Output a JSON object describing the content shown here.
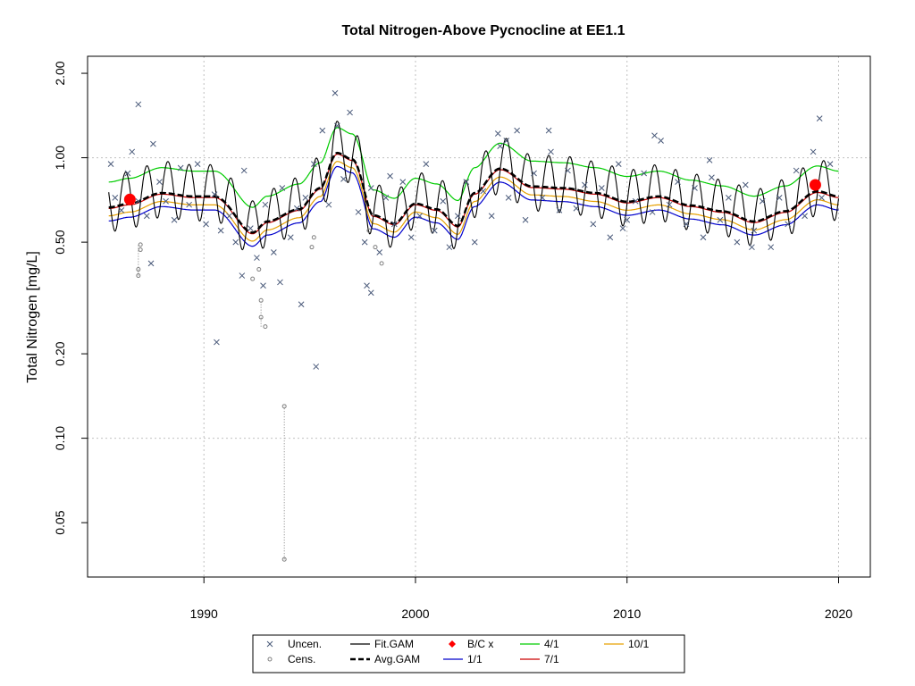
{
  "chart_data": {
    "type": "scatter",
    "title": "Total Nitrogen-Above Pycnocline at EE1.1",
    "xlabel": "",
    "ylabel": "Total Nitrogen [mg/L]",
    "y_scale": "log",
    "xlim": [
      1984.5,
      2021.5
    ],
    "ylim": [
      0.032,
      2.3
    ],
    "x_ticks": [
      1990,
      2000,
      2010,
      2020
    ],
    "x_tick_labels": [
      "1990",
      "2000",
      "2010",
      "2020"
    ],
    "y_ticks": [
      0.05,
      0.1,
      0.2,
      0.5,
      1.0,
      2.0
    ],
    "y_tick_labels": [
      "0.05",
      "0.10",
      "0.20",
      "0.50",
      "1.00",
      "2.00"
    ],
    "grid": true,
    "legend_position": "bottom",
    "legend": [
      {
        "key": "uncen",
        "label": "Uncen.",
        "symbol": "x",
        "color": "#4a5a7a"
      },
      {
        "key": "cens",
        "label": "Cens.",
        "symbol": "o",
        "color": "#808080"
      },
      {
        "key": "fit_gam",
        "label": "Fit.GAM",
        "symbol": "line",
        "color": "#000000"
      },
      {
        "key": "avg_gam",
        "label": "Avg.GAM",
        "symbol": "dashed",
        "color": "#000000"
      },
      {
        "key": "bc",
        "label": "B/C x",
        "symbol": "diamond",
        "color": "#ff0000"
      },
      {
        "key": "d11",
        "label": "1/1",
        "symbol": "line",
        "color": "#0000cc"
      },
      {
        "key": "d41",
        "label": "4/1",
        "symbol": "line",
        "color": "#00cc00"
      },
      {
        "key": "d71",
        "label": "7/1",
        "symbol": "line",
        "color": "#cc0000"
      },
      {
        "key": "d101",
        "label": "10/1",
        "symbol": "line",
        "color": "#e6a000"
      }
    ],
    "colors": {
      "uncen": "#4a5a7a",
      "cens": "#808080",
      "fit": "#000000",
      "avg": "#000000",
      "bc": "#ff0000",
      "d11": "#0000cc",
      "d41": "#00cc00",
      "d71": "#cc0000",
      "d101": "#e6a000",
      "grid": "#c0c0c0"
    },
    "baseline_nodes": {
      "x": [
        1985.5,
        1986.5,
        1988,
        1989.5,
        1990.5,
        1992.3,
        1993,
        1994.5,
        1995.5,
        1996.3,
        1997,
        1998,
        1999,
        2000,
        2001,
        2002,
        2002.8,
        2004,
        2005.5,
        2007,
        2008.5,
        2010,
        2011.5,
        2013,
        2014.5,
        2016,
        2017.5,
        2019,
        2020
      ],
      "y": [
        0.64,
        0.66,
        0.72,
        0.7,
        0.7,
        0.52,
        0.57,
        0.63,
        0.75,
        1.0,
        0.95,
        0.6,
        0.56,
        0.66,
        0.63,
        0.55,
        0.72,
        0.88,
        0.76,
        0.75,
        0.72,
        0.67,
        0.7,
        0.65,
        0.62,
        0.57,
        0.62,
        0.73,
        0.7
      ]
    },
    "day_factors": {
      "d11": 0.93,
      "d41": 1.28,
      "d71": 1.03,
      "d101": 0.97,
      "avg": 1.04
    },
    "fit_seasonal": {
      "start_offset": 0.3,
      "trough_factor": 0.85,
      "peak_factor": 1.35
    },
    "bc_points": [
      {
        "x": 1986.5,
        "y": 0.71
      },
      {
        "x": 2018.9,
        "y": 0.8
      }
    ],
    "uncensored": {
      "x": [
        1985.6,
        1985.8,
        1986.1,
        1986.4,
        1986.6,
        1986.9,
        1987.3,
        1987.6,
        1987.9,
        1988.2,
        1988.6,
        1988.9,
        1989.3,
        1989.7,
        1990.1,
        1990.5,
        1990.8,
        1991.2,
        1991.5,
        1991.9,
        1992.2,
        1992.5,
        1992.9,
        1993.3,
        1993.7,
        1994.1,
        1994.4,
        1994.8,
        1995.2,
        1995.6,
        1995.9,
        1996.3,
        1996.6,
        1996.9,
        1997.3,
        1997.6,
        1997.9,
        1998.3,
        1998.6,
        1999.0,
        1999.4,
        1999.8,
        2000.2,
        2000.5,
        2000.9,
        2001.3,
        2001.6,
        2002.0,
        2002.4,
        2002.8,
        2003.2,
        2003.6,
        2004.0,
        2004.4,
        2004.8,
        2005.2,
        2005.6,
        2006.0,
        2006.4,
        2006.8,
        2007.2,
        2007.6,
        2008.0,
        2008.4,
        2008.8,
        2009.2,
        2009.6,
        2010.0,
        2010.4,
        2010.8,
        2011.2,
        2011.6,
        2012.0,
        2012.4,
        2012.8,
        2013.2,
        2013.6,
        2014.0,
        2014.4,
        2014.8,
        2015.2,
        2015.6,
        2016.0,
        2016.4,
        2016.8,
        2017.2,
        2017.6,
        2018.0,
        2018.4,
        2018.8,
        2019.2,
        2019.6,
        1987.5,
        1991.8,
        1993.6,
        1996.2,
        1997.7,
        2004.3,
        2011.3,
        2019.1,
        1986.9,
        1992.8,
        1995.3,
        1998.8,
        2003.9,
        2009.8,
        2015.9,
        1990.6,
        1994.6,
        1997.9,
        2006.3,
        2013.9
      ],
      "y": [
        0.95,
        0.72,
        0.65,
        0.88,
        1.05,
        0.7,
        0.62,
        1.12,
        0.82,
        0.7,
        0.6,
        0.92,
        0.68,
        0.95,
        0.58,
        0.74,
        0.55,
        0.62,
        0.5,
        0.9,
        0.56,
        0.44,
        0.68,
        0.46,
        0.78,
        0.52,
        0.66,
        0.72,
        0.95,
        1.25,
        0.68,
        1.3,
        0.84,
        1.45,
        0.64,
        0.5,
        0.78,
        0.46,
        0.72,
        0.58,
        0.82,
        0.52,
        0.62,
        0.95,
        0.55,
        0.7,
        0.48,
        0.62,
        0.82,
        0.5,
        0.76,
        0.62,
        1.1,
        0.72,
        1.25,
        0.6,
        0.88,
        0.72,
        1.05,
        0.65,
        0.9,
        0.66,
        0.8,
        0.58,
        0.78,
        0.52,
        0.95,
        0.6,
        0.7,
        0.88,
        0.64,
        1.15,
        0.68,
        0.82,
        0.58,
        0.78,
        0.52,
        0.85,
        0.6,
        0.72,
        0.5,
        0.8,
        0.55,
        0.7,
        0.48,
        0.72,
        0.58,
        0.9,
        0.62,
        1.05,
        0.72,
        0.95,
        0.42,
        0.38,
        0.36,
        1.7,
        0.35,
        1.15,
        1.2,
        1.38,
        1.55,
        0.35,
        0.18,
        0.86,
        1.22,
        0.56,
        0.48,
        0.22,
        0.3,
        0.33,
        1.25,
        0.98
      ]
    },
    "censored": {
      "points": [
        {
          "x": 1986.9,
          "y": 0.38
        },
        {
          "x": 1986.9,
          "y": 0.4
        },
        {
          "x": 1987.0,
          "y": 0.47
        },
        {
          "x": 1987.0,
          "y": 0.49
        },
        {
          "x": 1992.3,
          "y": 0.37
        },
        {
          "x": 1992.6,
          "y": 0.4
        },
        {
          "x": 1992.7,
          "y": 0.31
        },
        {
          "x": 1992.7,
          "y": 0.27
        },
        {
          "x": 1992.9,
          "y": 0.25
        },
        {
          "x": 1993.8,
          "y": 0.13
        },
        {
          "x": 1993.8,
          "y": 0.037
        },
        {
          "x": 1995.1,
          "y": 0.48
        },
        {
          "x": 1995.2,
          "y": 0.52
        },
        {
          "x": 1997.8,
          "y": 0.55
        },
        {
          "x": 1998.1,
          "y": 0.48
        },
        {
          "x": 1998.4,
          "y": 0.42
        }
      ],
      "intervals": [
        {
          "x": 1993.8,
          "low": 0.037,
          "high": 0.13
        },
        {
          "x": 1992.7,
          "low": 0.25,
          "high": 0.31
        },
        {
          "x": 1986.9,
          "low": 0.38,
          "high": 0.49
        }
      ]
    }
  }
}
